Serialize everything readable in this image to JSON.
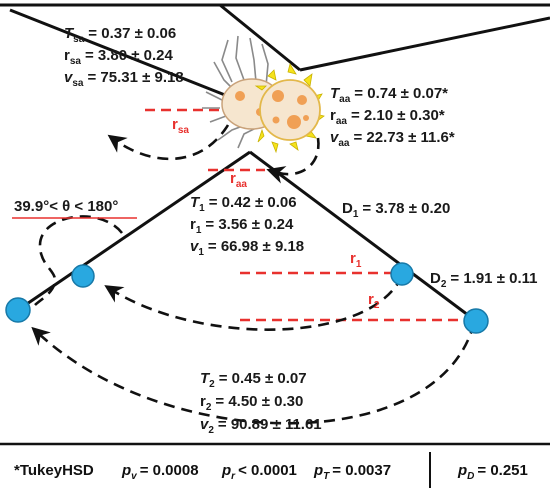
{
  "stats": {
    "Tsa": "= 0.37 ± 0.06",
    "rsa": "= 3.80 ± 0.24",
    "vsa": "= 75.31 ± 9.18",
    "Taa": "= 0.74 ± 0.07*",
    "raa": "= 2.10 ± 0.30*",
    "vaa": "= 22.73 ± 11.6*",
    "T1": "= 0.42 ± 0.06",
    "r1": "= 3.56 ± 0.24",
    "v1": "= 66.98 ± 9.18",
    "T2": "= 0.45 ± 0.07",
    "r2": "= 4.50 ± 0.30",
    "v2": "= 90.89 ± 11.61",
    "D1": "= 3.78 ± 0.20",
    "D2": "= 1.91 ±  0.11"
  },
  "angle": "39.9°< θ < 180°",
  "radius_labels": {
    "sa_sub": "sa",
    "aa_sub": "aa",
    "one_sub": "1",
    "two_sub": "2"
  },
  "footer": {
    "tukey": "*TukeyHSD",
    "pv": "= 0.0008",
    "pr": "< 0.0001",
    "pT": "= 0.0037",
    "pD": "= 0.251"
  },
  "colors": {
    "node": "#29a8e0",
    "radius_line": "#e8312e",
    "ink": "#111111",
    "crab_shell": "#f6e6cf",
    "crab_spots": "#f0a055",
    "crab_spines": "#f5e21c"
  }
}
